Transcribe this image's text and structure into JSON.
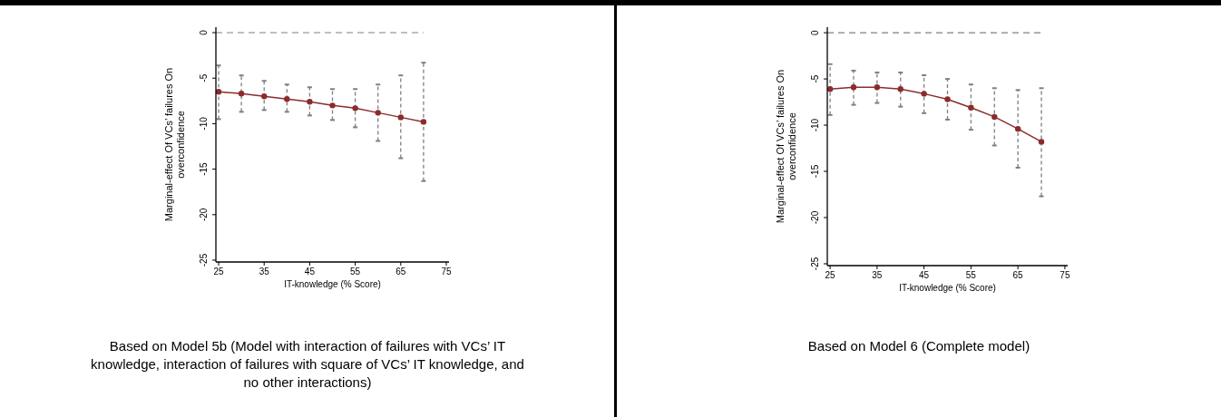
{
  "chart_data": [
    {
      "type": "line",
      "xlabel": "IT-knowledge (% Score)",
      "ylabel": "Marginal-effect Of VCs’ failures On overconfidence",
      "x": [
        25,
        30,
        35,
        40,
        45,
        50,
        55,
        60,
        65,
        70
      ],
      "series": [
        {
          "color": "#8b2c2c",
          "values": [
            -6.5,
            -6.7,
            -7.0,
            -7.3,
            -7.6,
            -8.0,
            -8.3,
            -8.8,
            -9.3,
            -9.8
          ],
          "errors": [
            [
              -9.5,
              -3.6
            ],
            [
              -8.7,
              -4.7
            ],
            [
              -8.5,
              -5.3
            ],
            [
              -8.7,
              -5.7
            ],
            [
              -9.1,
              -6.0
            ],
            [
              -9.6,
              -6.2
            ],
            [
              -10.4,
              -6.2
            ],
            [
              -11.9,
              -5.7
            ],
            [
              -13.8,
              -4.7
            ],
            [
              -16.3,
              -3.3
            ]
          ]
        }
      ],
      "marker": "circle",
      "xlim": [
        24.4,
        75.6
      ],
      "xticks": [
        25,
        35,
        45,
        55,
        65,
        75
      ],
      "ylim": [
        -25.2,
        0.6
      ],
      "yticks": [
        0,
        -5,
        -10,
        -15,
        -20,
        -25
      ],
      "ref_lines": [
        {
          "axis": "y",
          "value": 0,
          "color": "#808080",
          "line_style": "dashed"
        }
      ],
      "annotations": [
        "Based on Model 5b (Model with interaction of failures with VCs’ IT knowledge, interaction of failures with square of VCs’ IT knowledge, and no other interactions)"
      ]
    },
    {
      "type": "line",
      "xlabel": "IT-knowledge (% Score)",
      "ylabel": "Marginal-effect Of VCs’ failures On overconfidence",
      "x": [
        25,
        30,
        35,
        40,
        45,
        50,
        55,
        60,
        65,
        70
      ],
      "series": [
        {
          "color": "#8b2c2c",
          "values": [
            -6.1,
            -5.9,
            -5.9,
            -6.1,
            -6.6,
            -7.2,
            -8.1,
            -9.1,
            -10.4,
            -11.8
          ],
          "errors": [
            [
              -8.9,
              -3.4
            ],
            [
              -7.8,
              -4.1
            ],
            [
              -7.6,
              -4.3
            ],
            [
              -8.0,
              -4.3
            ],
            [
              -8.7,
              -4.6
            ],
            [
              -9.4,
              -5.0
            ],
            [
              -10.5,
              -5.6
            ],
            [
              -12.2,
              -6.0
            ],
            [
              -14.6,
              -6.2
            ],
            [
              -17.7,
              -6.0
            ]
          ]
        }
      ],
      "marker": "circle",
      "xlim": [
        24.4,
        75.6
      ],
      "xticks": [
        25,
        35,
        45,
        55,
        65,
        75
      ],
      "ylim": [
        -25.2,
        0.6
      ],
      "yticks": [
        0,
        -5,
        -10,
        -15,
        -20,
        -25
      ],
      "ref_lines": [
        {
          "axis": "y",
          "value": 0,
          "color": "#808080",
          "line_style": "dashed"
        }
      ],
      "annotations": [
        "Based on Model 6 (Complete model)"
      ]
    }
  ]
}
